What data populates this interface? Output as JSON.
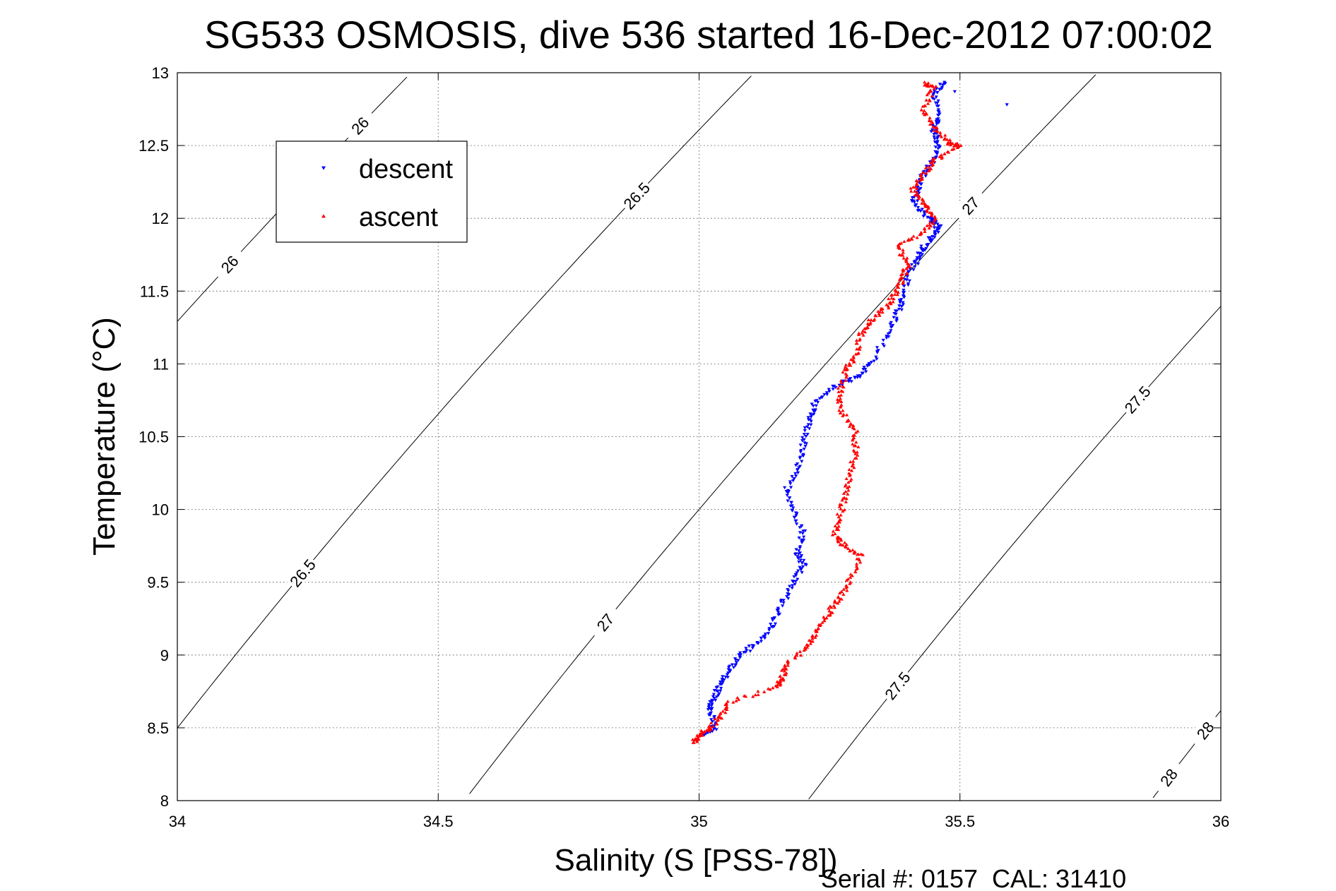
{
  "chart_data": {
    "type": "scatter",
    "title": "SG533 OSMOSIS, dive 536 started 16-Dec-2012 07:00:02",
    "xlabel": "Salinity (S [PSS-78])",
    "ylabel": "Temperature (°C)",
    "footer": "Serial #: 0157  CAL: 31410",
    "xlim": [
      34,
      36
    ],
    "ylim": [
      8,
      13
    ],
    "grid": true,
    "legend_placement": "top-left",
    "x_ticks": [
      "34",
      "34.5",
      "35",
      "35.5",
      "36"
    ],
    "y_ticks": [
      "8",
      "8.5",
      "9",
      "9.5",
      "10",
      "10.5",
      "11",
      "11.5",
      "12",
      "12.5",
      "13"
    ],
    "isopycnals": {
      "values": [
        26,
        26.5,
        27,
        27.5,
        28
      ],
      "labels": [
        "26",
        "26.5",
        "27",
        "27.5",
        "28"
      ],
      "color": "#000000"
    },
    "series": [
      {
        "name": "descent",
        "color": "#0000ff",
        "marker": "triangle-down",
        "trace": [
          [
            35.47,
            12.93
          ],
          [
            35.45,
            12.85
          ],
          [
            35.46,
            12.7
          ],
          [
            35.45,
            12.6
          ],
          [
            35.46,
            12.5
          ],
          [
            35.45,
            12.4
          ],
          [
            35.43,
            12.3
          ],
          [
            35.42,
            12.2
          ],
          [
            35.41,
            12.1
          ],
          [
            35.44,
            12.0
          ],
          [
            35.46,
            11.95
          ],
          [
            35.45,
            11.88
          ],
          [
            35.43,
            11.8
          ],
          [
            35.42,
            11.72
          ],
          [
            35.4,
            11.6
          ],
          [
            35.39,
            11.45
          ],
          [
            35.38,
            11.35
          ],
          [
            35.36,
            11.2
          ],
          [
            35.33,
            11.0
          ],
          [
            35.3,
            10.9
          ],
          [
            35.26,
            10.85
          ],
          [
            35.22,
            10.72
          ],
          [
            35.21,
            10.6
          ],
          [
            35.2,
            10.45
          ],
          [
            35.19,
            10.3
          ],
          [
            35.17,
            10.15
          ],
          [
            35.18,
            10.0
          ],
          [
            35.2,
            9.85
          ],
          [
            35.19,
            9.7
          ],
          [
            35.2,
            9.62
          ],
          [
            35.18,
            9.5
          ],
          [
            35.16,
            9.35
          ],
          [
            35.14,
            9.2
          ],
          [
            35.11,
            9.08
          ],
          [
            35.08,
            9.0
          ],
          [
            35.06,
            8.9
          ],
          [
            35.04,
            8.8
          ],
          [
            35.03,
            8.7
          ],
          [
            35.02,
            8.62
          ],
          [
            35.03,
            8.5
          ],
          [
            35.01,
            8.45
          ]
        ],
        "outliers": [
          [
            35.49,
            12.87
          ],
          [
            35.59,
            12.78
          ]
        ]
      },
      {
        "name": "ascent",
        "color": "#ff0000",
        "marker": "triangle-up",
        "trace": [
          [
            35.43,
            12.93
          ],
          [
            35.45,
            12.9
          ],
          [
            35.43,
            12.75
          ],
          [
            35.45,
            12.62
          ],
          [
            35.48,
            12.52
          ],
          [
            35.5,
            12.5
          ],
          [
            35.45,
            12.4
          ],
          [
            35.43,
            12.3
          ],
          [
            35.41,
            12.2
          ],
          [
            35.43,
            12.1
          ],
          [
            35.45,
            12.0
          ],
          [
            35.43,
            11.9
          ],
          [
            35.38,
            11.82
          ],
          [
            35.4,
            11.7
          ],
          [
            35.39,
            11.6
          ],
          [
            35.38,
            11.5
          ],
          [
            35.36,
            11.4
          ],
          [
            35.33,
            11.3
          ],
          [
            35.31,
            11.2
          ],
          [
            35.3,
            11.05
          ],
          [
            35.28,
            10.95
          ],
          [
            35.27,
            10.82
          ],
          [
            35.27,
            10.68
          ],
          [
            35.3,
            10.55
          ],
          [
            35.3,
            10.4
          ],
          [
            35.29,
            10.25
          ],
          [
            35.28,
            10.1
          ],
          [
            35.27,
            9.95
          ],
          [
            35.26,
            9.82
          ],
          [
            35.28,
            9.75
          ],
          [
            35.31,
            9.68
          ],
          [
            35.29,
            9.52
          ],
          [
            35.27,
            9.4
          ],
          [
            35.25,
            9.3
          ],
          [
            35.23,
            9.18
          ],
          [
            35.21,
            9.06
          ],
          [
            35.17,
            8.95
          ],
          [
            35.16,
            8.85
          ],
          [
            35.15,
            8.78
          ],
          [
            35.06,
            8.68
          ],
          [
            35.04,
            8.58
          ],
          [
            35.02,
            8.5
          ],
          [
            35.0,
            8.45
          ],
          [
            34.99,
            8.4
          ]
        ]
      }
    ]
  }
}
